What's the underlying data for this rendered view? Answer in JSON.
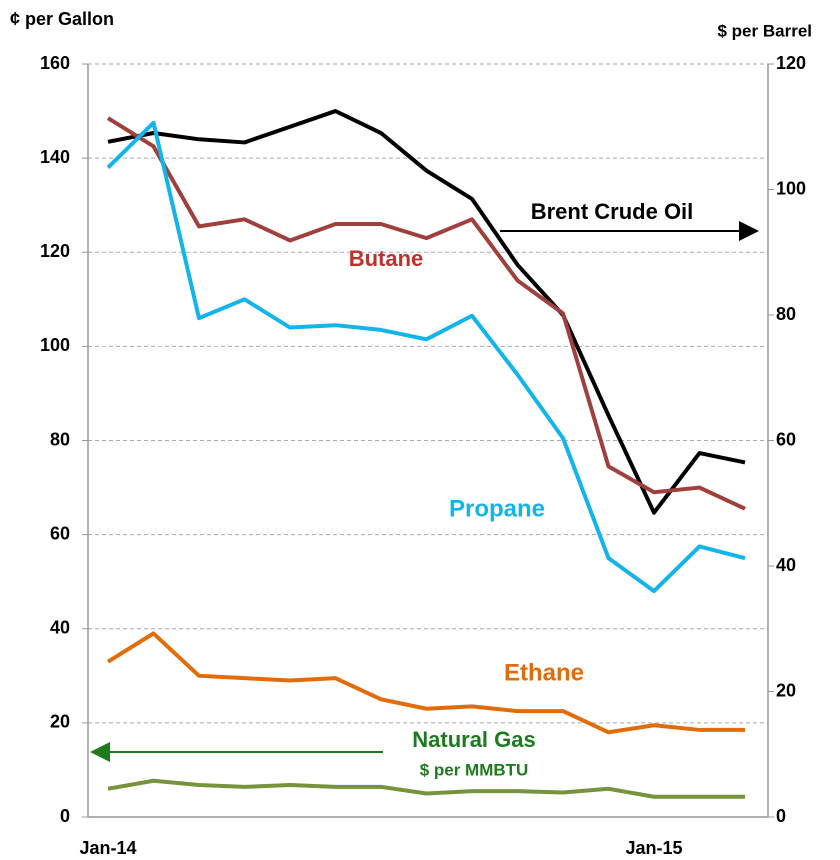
{
  "chart_data": {
    "type": "line",
    "y_label": "¢ per Gallon",
    "y2_label": "$ per Barrel",
    "categories": [
      "Jan-14",
      null,
      null,
      null,
      null,
      null,
      null,
      null,
      null,
      null,
      null,
      null,
      "Jan-15",
      null,
      null
    ],
    "ylim": [
      0,
      160
    ],
    "yticks": [
      0,
      20,
      40,
      60,
      80,
      100,
      120,
      140,
      160
    ],
    "y2lim": [
      0,
      120
    ],
    "y2ticks": [
      0,
      20,
      40,
      60,
      80,
      100,
      120
    ],
    "grid": true,
    "series": [
      {
        "name": "Brent Crude Oil",
        "color": "#000000",
        "axis": "y2",
        "values": [
          107.6,
          109,
          108,
          107.5,
          110,
          112.5,
          109,
          103,
          98.5,
          88,
          80,
          64,
          48.5,
          58,
          56.5
        ]
      },
      {
        "name": "Butane",
        "color": "#a0403e",
        "values": [
          148.5,
          142.5,
          125.5,
          127,
          122.5,
          126,
          126,
          123,
          127,
          114,
          107,
          74.5,
          69,
          70,
          65.5
        ]
      },
      {
        "name": "Propane",
        "color": "#12b4ec",
        "values": [
          138,
          147.5,
          106,
          110,
          104,
          104.5,
          103.5,
          101.5,
          106.5,
          94,
          80.5,
          55,
          48,
          57.5,
          55
        ]
      },
      {
        "name": "Ethane",
        "color": "#e36c0a",
        "values": [
          33,
          39,
          30,
          29.5,
          29,
          29.5,
          25,
          23,
          23.5,
          22.5,
          22.5,
          18,
          19.5,
          18.5,
          18.5
        ]
      },
      {
        "name": "Natural Gas",
        "color": "#77933c",
        "values": [
          6,
          7.7,
          6.8,
          6.4,
          6.8,
          6.4,
          6.4,
          5,
          5.5,
          5.5,
          5.2,
          6,
          4.3,
          4.3,
          4.3
        ]
      }
    ],
    "annotations": [
      {
        "text": "Brent Crude Oil",
        "color": "#000000"
      },
      {
        "text": "Butane",
        "color": "#c0302c"
      },
      {
        "text": "Propane",
        "color": "#12b4ec"
      },
      {
        "text": "Ethane",
        "color": "#e36c0a"
      },
      {
        "text": "Natural Gas",
        "color": "#1e7a1e"
      },
      {
        "text": "$ per MMBTU",
        "color": "#1e7a1e"
      }
    ]
  }
}
